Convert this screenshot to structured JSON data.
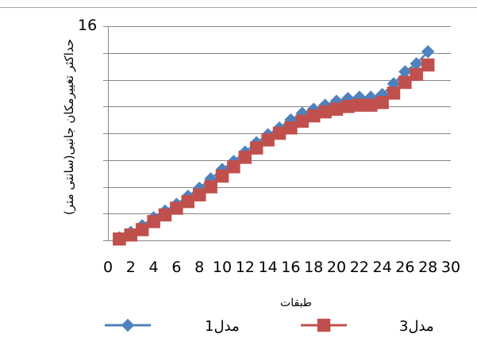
{
  "chart_data": {
    "type": "line",
    "xlabel": "طبقات",
    "ylabel": "حداکثر تغییرمکان جانبی(سانتی متر)",
    "x_ticks": [
      "0",
      "2",
      "4",
      "6",
      "8",
      "10",
      "12",
      "14",
      "16",
      "18",
      "20",
      "22",
      "24",
      "26",
      "28",
      "30"
    ],
    "y_tick_top": "16",
    "xlim": [
      0,
      30
    ],
    "ylim": [
      0,
      16
    ],
    "grid": "horizontal",
    "legend_position": "bottom",
    "x": [
      1,
      2,
      3,
      4,
      5,
      6,
      7,
      8,
      9,
      10,
      11,
      12,
      13,
      14,
      15,
      16,
      17,
      18,
      19,
      20,
      21,
      22,
      23,
      24,
      25,
      26,
      27,
      28
    ],
    "series": [
      {
        "name": "مدل1",
        "color": "#4F81BD",
        "marker": "diamond",
        "values": [
          0.2,
          0.6,
          1.1,
          1.7,
          2.2,
          2.7,
          3.3,
          3.9,
          4.6,
          5.3,
          5.9,
          6.6,
          7.3,
          7.9,
          8.4,
          9.0,
          9.5,
          9.8,
          10.1,
          10.4,
          10.6,
          10.7,
          10.7,
          10.9,
          11.7,
          12.6,
          13.2,
          14.1
        ]
      },
      {
        "name": "مدل3",
        "color": "#C0504D",
        "marker": "square",
        "values": [
          0.1,
          0.4,
          0.8,
          1.4,
          1.9,
          2.4,
          2.9,
          3.4,
          4.0,
          4.8,
          5.5,
          6.2,
          6.9,
          7.5,
          8.0,
          8.4,
          8.9,
          9.3,
          9.6,
          9.8,
          10.0,
          10.1,
          10.1,
          10.3,
          11.0,
          11.8,
          12.4,
          13.1
        ]
      }
    ]
  }
}
